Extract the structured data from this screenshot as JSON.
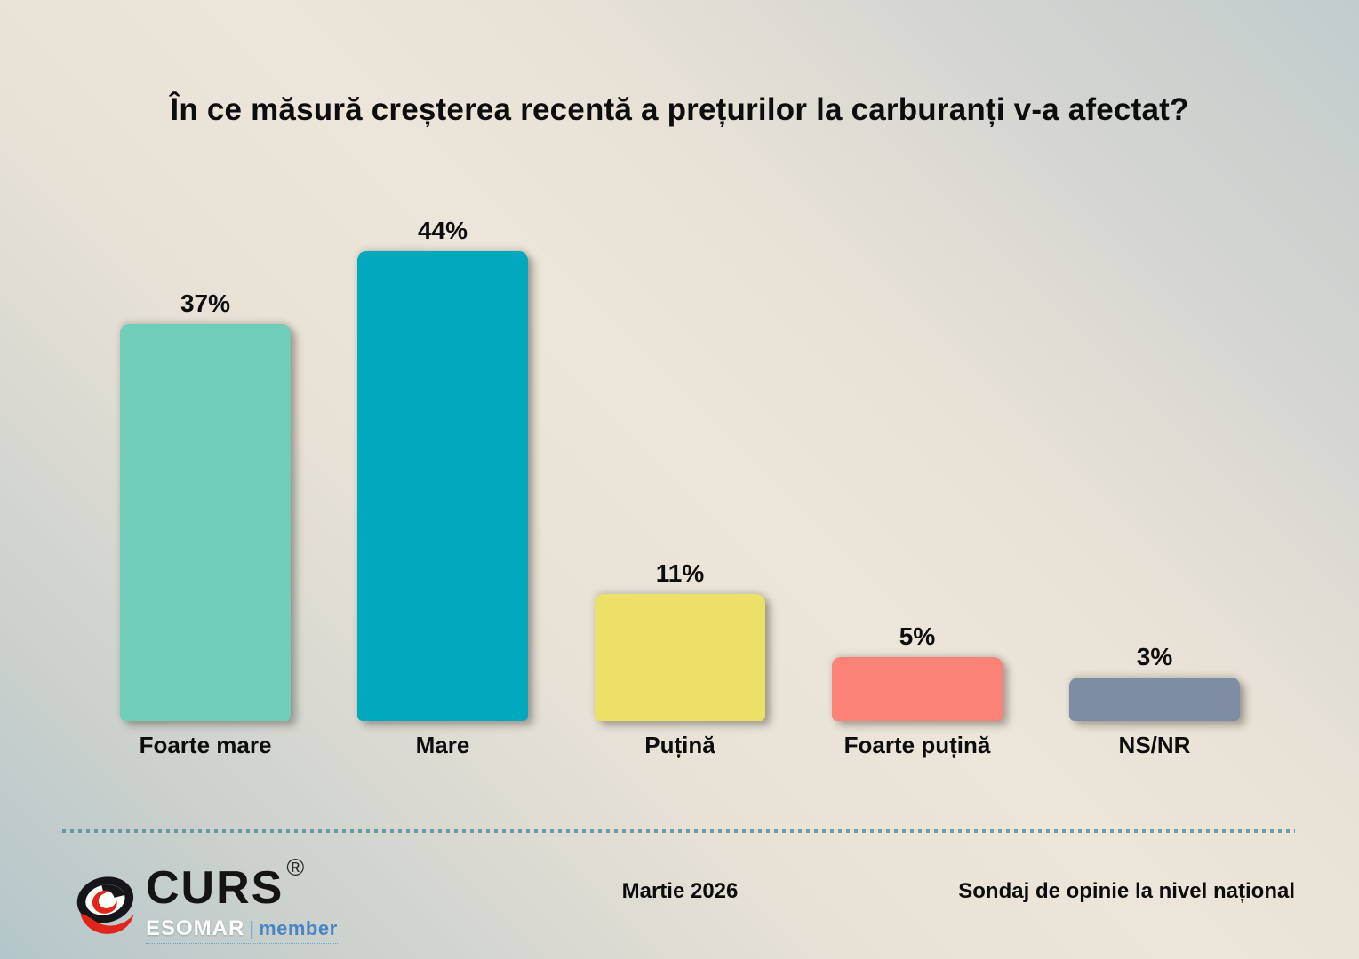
{
  "title": "În ce măsură creșterea recentă a prețurilor la carburanți v-a afectat?",
  "chart_data": {
    "type": "bar",
    "title": "În ce măsură creșterea recentă a prețurilor la carburanți v-a afectat?",
    "categories": [
      "Foarte mare",
      "Mare",
      "Puțină",
      "Foarte puțină",
      "NS/NR"
    ],
    "values": [
      37,
      44,
      11,
      5,
      3
    ],
    "value_labels": [
      "37%",
      "44%",
      "11%",
      "5%",
      "3%"
    ],
    "bar_colors": [
      "#70cdb7",
      "#00a9bd",
      "#ece067",
      "#fb8276",
      "#7e8da4"
    ],
    "xlabel": "",
    "ylabel": "",
    "ylim": [
      0,
      50
    ],
    "grid": false,
    "legend": false,
    "value_label_position": "above-bar",
    "category_label_position": "below-bar"
  },
  "footer": {
    "brand": "CURS",
    "registered_mark": "®",
    "esomar": "ESOMAR",
    "member": "member",
    "date": "Martie 2026",
    "note": "Sondaj de opinie la nivel național"
  },
  "colors": {
    "title_text": "#0d0d0d",
    "separator_dots": "#55879b",
    "background_beige": "#ece6da",
    "background_blue": "#b4c6ca",
    "logo_red": "#e1251b",
    "logo_black": "#16161a",
    "esomar_white": "#fcfcfa",
    "member_blue": "#4a86c4"
  }
}
